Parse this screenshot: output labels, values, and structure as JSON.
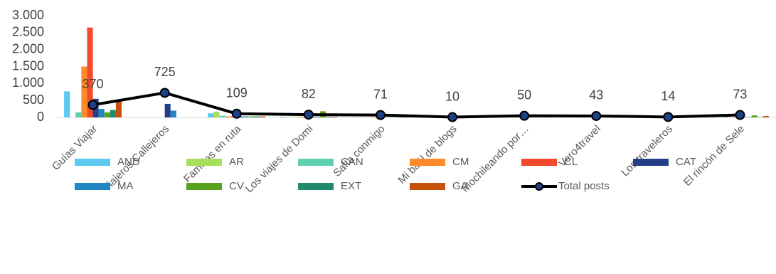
{
  "chart_data": {
    "type": "bar",
    "categories": [
      "Guías Viajar",
      "Viajeros Callejeros",
      "Familias en ruta",
      "Los viajes de Domi",
      "Salta conmigo",
      "Mi baúl de blogs",
      "Mochileando por…",
      "Vero4travel",
      "Los traveleros",
      "El rincón de  Sele"
    ],
    "ylim": [
      0,
      3000
    ],
    "yticks": [
      0,
      500,
      {
        "value": 1000,
        "label": "1.000"
      },
      {
        "value": 1500,
        "label": "1.500"
      },
      {
        "value": 2000,
        "label": "2.000"
      },
      {
        "value": 2500,
        "label": "2.500"
      },
      {
        "value": 3000,
        "label": "3.000"
      }
    ],
    "grid": false,
    "series": [
      {
        "name": "AND",
        "color": "#5bc8f0",
        "values": [
          770,
          0,
          120,
          20,
          10,
          0,
          10,
          5,
          0,
          10
        ]
      },
      {
        "name": "AR",
        "color": "#a6e05a",
        "values": [
          0,
          0,
          170,
          10,
          5,
          0,
          5,
          5,
          0,
          5
        ]
      },
      {
        "name": "CAN",
        "color": "#5ecfb0",
        "values": [
          150,
          0,
          50,
          10,
          5,
          0,
          5,
          5,
          0,
          50
        ]
      },
      {
        "name": "CM",
        "color": "#ff8a2a",
        "values": [
          1500,
          0,
          30,
          20,
          10,
          0,
          10,
          5,
          0,
          10
        ]
      },
      {
        "name": "CL",
        "color": "#f24a2a",
        "values": [
          2650,
          0,
          30,
          20,
          10,
          0,
          10,
          5,
          0,
          10
        ]
      },
      {
        "name": "CAT",
        "color": "#233f86",
        "values": [
          550,
          400,
          30,
          20,
          10,
          0,
          10,
          5,
          0,
          10
        ]
      },
      {
        "name": "MA",
        "color": "#1f86c2",
        "values": [
          250,
          200,
          30,
          20,
          10,
          0,
          10,
          5,
          0,
          10
        ]
      },
      {
        "name": "CV",
        "color": "#5aa21e",
        "values": [
          150,
          0,
          30,
          180,
          10,
          0,
          10,
          5,
          0,
          60
        ]
      },
      {
        "name": "EXT",
        "color": "#1f8a6e",
        "values": [
          220,
          0,
          30,
          20,
          10,
          0,
          10,
          5,
          0,
          10
        ]
      },
      {
        "name": "GA",
        "color": "#c4520a",
        "values": [
          480,
          0,
          30,
          20,
          10,
          0,
          10,
          5,
          0,
          40
        ]
      },
      {
        "name": "Total posts",
        "color": "#000000",
        "type": "line",
        "values": [
          370,
          725,
          109,
          82,
          71,
          10,
          50,
          43,
          14,
          73
        ]
      }
    ]
  }
}
